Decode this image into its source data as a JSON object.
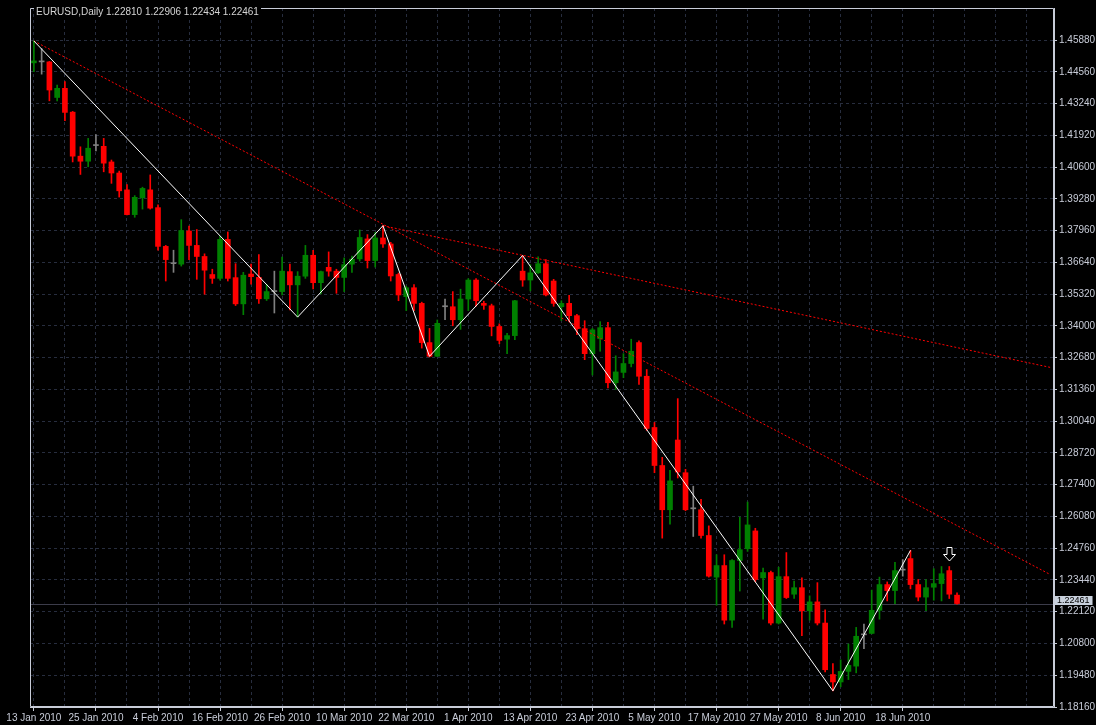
{
  "chart_data": {
    "type": "candlestick",
    "title": "EURUSD,Daily 1.22810 1.22906 1.22434 1.22461",
    "categories": [
      "13 Jan 2010",
      null,
      null,
      null,
      null,
      null,
      null,
      null,
      "25 Jan 2010",
      null,
      null,
      null,
      null,
      null,
      null,
      null,
      "4 Feb 2010",
      null,
      null,
      null,
      null,
      null,
      null,
      null,
      "16 Feb 2010",
      null,
      null,
      null,
      null,
      null,
      null,
      null,
      "26 Feb 2010",
      null,
      null,
      null,
      null,
      null,
      null,
      null,
      "10 Mar 2010",
      null,
      null,
      null,
      null,
      null,
      null,
      null,
      "22 Mar 2010",
      null,
      null,
      null,
      null,
      null,
      null,
      null,
      "1 Apr 2010",
      null,
      null,
      null,
      null,
      null,
      null,
      null,
      "13 Apr 2010",
      null,
      null,
      null,
      null,
      null,
      null,
      null,
      "23 Apr 2010",
      null,
      null,
      null,
      null,
      null,
      null,
      null,
      "5 May 2010",
      null,
      null,
      null,
      null,
      null,
      null,
      null,
      "17 May 2010",
      null,
      null,
      null,
      null,
      null,
      null,
      null,
      "27 May 2010",
      null,
      null,
      null,
      null,
      null,
      null,
      null,
      "8 Jun 2010",
      null,
      null,
      null,
      null,
      null,
      null,
      null,
      "18 Jun 2010",
      null,
      null,
      null,
      null,
      null,
      null,
      null,
      null,
      null,
      null,
      null,
      null,
      null,
      null,
      null,
      null,
      null,
      null,
      null
    ],
    "ohlc": [
      [
        1.4494,
        1.4585,
        1.4457,
        1.4502
      ],
      [
        1.4498,
        1.4553,
        1.4447,
        1.4498
      ],
      [
        1.4498,
        1.45,
        1.4336,
        1.4381
      ],
      [
        1.435,
        1.4402,
        1.4336,
        1.4388
      ],
      [
        1.4388,
        1.4416,
        1.4254,
        1.4288
      ],
      [
        1.4289,
        1.4292,
        1.4082,
        1.4106
      ],
      [
        1.4106,
        1.4145,
        1.403,
        1.4085
      ],
      [
        1.4085,
        1.418,
        1.4062,
        1.4139
      ],
      [
        1.415,
        1.4196,
        1.4128,
        1.415
      ],
      [
        1.4147,
        1.418,
        1.4041,
        1.4077
      ],
      [
        1.4082,
        1.409,
        1.3993,
        1.4036
      ],
      [
        1.4036,
        1.4044,
        1.3936,
        1.3962
      ],
      [
        1.3966,
        1.3988,
        1.3862,
        1.3863
      ],
      [
        1.3863,
        1.3942,
        1.3852,
        1.3935
      ],
      [
        1.3933,
        1.3977,
        1.3886,
        1.3972
      ],
      [
        1.3966,
        1.4028,
        1.3886,
        1.389
      ],
      [
        1.3892,
        1.3904,
        1.3715,
        1.3731
      ],
      [
        1.3731,
        1.3735,
        1.3587,
        1.3676
      ],
      [
        1.3659,
        1.3715,
        1.3623,
        1.3659
      ],
      [
        1.3657,
        1.3842,
        1.3649,
        1.3797
      ],
      [
        1.3795,
        1.3815,
        1.3676,
        1.3735
      ],
      [
        1.3735,
        1.3801,
        1.3594,
        1.3689
      ],
      [
        1.3689,
        1.37,
        1.3532,
        1.3632
      ],
      [
        1.3614,
        1.3636,
        1.3577,
        1.3598
      ],
      [
        1.3598,
        1.3773,
        1.3591,
        1.376
      ],
      [
        1.376,
        1.3791,
        1.3587,
        1.3598
      ],
      [
        1.3601,
        1.3659,
        1.3485,
        1.3492
      ],
      [
        1.3492,
        1.3623,
        1.3447,
        1.3611
      ],
      [
        1.3616,
        1.3657,
        1.3574,
        1.3605
      ],
      [
        1.3602,
        1.3697,
        1.3494,
        1.3513
      ],
      [
        1.3513,
        1.3573,
        1.3506,
        1.3543
      ],
      [
        1.3543,
        1.3628,
        1.3454,
        1.3543
      ],
      [
        1.3543,
        1.3686,
        1.3529,
        1.3628
      ],
      [
        1.3626,
        1.3657,
        1.3467,
        1.3571
      ],
      [
        1.3571,
        1.3626,
        1.3437,
        1.3607
      ],
      [
        1.3607,
        1.3735,
        1.3598,
        1.3694
      ],
      [
        1.3694,
        1.3715,
        1.3554,
        1.358
      ],
      [
        1.358,
        1.3628,
        1.3533,
        1.3626
      ],
      [
        1.3644,
        1.3708,
        1.3607,
        1.3628
      ],
      [
        1.3628,
        1.3636,
        1.3536,
        1.3602
      ],
      [
        1.3602,
        1.3683,
        1.3543,
        1.3655
      ],
      [
        1.3657,
        1.3691,
        1.3623,
        1.3678
      ],
      [
        1.3679,
        1.3799,
        1.367,
        1.3768
      ],
      [
        1.3762,
        1.378,
        1.3641,
        1.3672
      ],
      [
        1.3672,
        1.3789,
        1.3645,
        1.3766
      ],
      [
        1.3766,
        1.3817,
        1.3727,
        1.3741
      ],
      [
        1.3741,
        1.3748,
        1.3587,
        1.3608
      ],
      [
        1.3614,
        1.362,
        1.3505,
        1.3529
      ],
      [
        1.3522,
        1.3566,
        1.3464,
        1.3559
      ],
      [
        1.3559,
        1.3572,
        1.3464,
        1.3494
      ],
      [
        1.3494,
        1.3499,
        1.3308,
        1.3331
      ],
      [
        1.3331,
        1.339,
        1.3271,
        1.3274
      ],
      [
        1.3274,
        1.3425,
        1.3273,
        1.3411
      ],
      [
        1.348,
        1.3512,
        1.3426,
        1.348
      ],
      [
        1.348,
        1.3543,
        1.3401,
        1.3426
      ],
      [
        1.3426,
        1.3553,
        1.3386,
        1.3512
      ],
      [
        1.3512,
        1.3597,
        1.3464,
        1.3591
      ],
      [
        1.3591,
        1.3597,
        1.3482,
        1.3505
      ],
      [
        1.3494,
        1.3503,
        1.3469,
        1.3486
      ],
      [
        1.3484,
        1.3491,
        1.3359,
        1.3398
      ],
      [
        1.3398,
        1.3409,
        1.3326,
        1.334
      ],
      [
        1.3345,
        1.337,
        1.3285,
        1.336
      ],
      [
        1.336,
        1.3507,
        1.3343,
        1.3505
      ],
      [
        1.3628,
        1.3693,
        1.3565,
        1.3591
      ],
      [
        1.3591,
        1.3655,
        1.3546,
        1.3621
      ],
      [
        1.3621,
        1.3688,
        1.3619,
        1.3659
      ],
      [
        1.3659,
        1.3676,
        1.3525,
        1.3529
      ],
      [
        1.3587,
        1.3594,
        1.3482,
        1.3494
      ],
      [
        1.348,
        1.3505,
        1.3423,
        1.3494
      ],
      [
        1.3494,
        1.3527,
        1.3419,
        1.3443
      ],
      [
        1.3443,
        1.3448,
        1.3364,
        1.3389
      ],
      [
        1.3389,
        1.3422,
        1.326,
        1.3285
      ],
      [
        1.3285,
        1.339,
        1.3196,
        1.3384
      ],
      [
        1.3347,
        1.3418,
        1.3295,
        1.3393
      ],
      [
        1.3393,
        1.3415,
        1.3143,
        1.3164
      ],
      [
        1.3164,
        1.3276,
        1.3136,
        1.3209
      ],
      [
        1.3207,
        1.3285,
        1.3185,
        1.3244
      ],
      [
        1.3244,
        1.3345,
        1.323,
        1.3295
      ],
      [
        1.3331,
        1.3338,
        1.3157,
        1.3191
      ],
      [
        1.3191,
        1.3219,
        1.2966,
        1.2974
      ],
      [
        1.2978,
        1.2999,
        1.279,
        1.282
      ],
      [
        1.282,
        1.2854,
        1.2518,
        1.2636
      ],
      [
        1.2636,
        1.28,
        1.2576,
        1.2756
      ],
      [
        1.2926,
        1.3098,
        1.2768,
        1.2793
      ],
      [
        1.279,
        1.2804,
        1.2632,
        1.2636
      ],
      [
        1.264,
        1.2734,
        1.2525,
        1.264
      ],
      [
        1.2636,
        1.2679,
        1.2518,
        1.2529
      ],
      [
        1.2529,
        1.2569,
        1.2356,
        1.236
      ],
      [
        1.2356,
        1.2449,
        1.2239,
        1.2404
      ],
      [
        1.2404,
        1.2449,
        1.2161,
        1.2177
      ],
      [
        1.2177,
        1.2429,
        1.2147,
        1.2425
      ],
      [
        1.2425,
        1.2605,
        1.2298,
        1.247
      ],
      [
        1.2474,
        1.2668,
        1.2463,
        1.2573
      ],
      [
        1.2548,
        1.2559,
        1.2337,
        1.2346
      ],
      [
        1.2353,
        1.2394,
        1.2181,
        1.2375
      ],
      [
        1.2375,
        1.2381,
        1.2157,
        1.2165
      ],
      [
        1.2165,
        1.2397,
        1.2161,
        1.2358
      ],
      [
        1.2358,
        1.2458,
        1.2267,
        1.2271
      ],
      [
        1.2285,
        1.234,
        1.2267,
        1.2312
      ],
      [
        1.2312,
        1.2353,
        1.2113,
        1.2216
      ],
      [
        1.2216,
        1.2278,
        1.2177,
        1.2253
      ],
      [
        1.2253,
        1.2333,
        1.2157,
        1.2165
      ],
      [
        1.2165,
        1.222,
        1.1962,
        1.1971
      ],
      [
        1.1951,
        1.1996,
        1.1883,
        1.192
      ],
      [
        1.192,
        1.2012,
        1.19,
        1.1964
      ],
      [
        1.1964,
        1.2078,
        1.193,
        1.1989
      ],
      [
        1.1986,
        1.2147,
        1.1958,
        1.211
      ],
      [
        1.2116,
        1.2161,
        1.2058,
        1.2116
      ],
      [
        1.2122,
        1.2302,
        1.212,
        1.2218
      ],
      [
        1.2218,
        1.2356,
        1.2181,
        1.2325
      ],
      [
        1.2325,
        1.2336,
        1.2257,
        1.23
      ],
      [
        1.23,
        1.2417,
        1.2246,
        1.2383
      ],
      [
        1.2385,
        1.2429,
        1.236,
        1.2385
      ],
      [
        1.2433,
        1.2467,
        1.2307,
        1.2325
      ],
      [
        1.2325,
        1.2346,
        1.2257,
        1.2273
      ],
      [
        1.2273,
        1.2346,
        1.2216,
        1.2312
      ],
      [
        1.2314,
        1.2391,
        1.226,
        1.2329
      ],
      [
        1.2329,
        1.24,
        1.2257,
        1.237
      ],
      [
        1.2383,
        1.24,
        1.2267,
        1.2285
      ],
      [
        1.2281,
        1.22906,
        1.22434,
        1.22461
      ],
      null,
      null,
      null,
      null,
      null,
      null,
      null,
      null,
      null,
      null,
      null,
      null
    ],
    "colors": [
      "#008000",
      "#808080",
      "#ff0000",
      "#008000",
      "#ff0000",
      "#ff0000",
      "#ff0000",
      "#008000",
      "#808080",
      "#ff0000",
      "#ff0000",
      "#ff0000",
      "#ff0000",
      "#008000",
      "#008000",
      "#ff0000",
      "#ff0000",
      "#ff0000",
      "#808080",
      "#008000",
      "#ff0000",
      "#ff0000",
      "#ff0000",
      "#ff0000",
      "#008000",
      "#ff0000",
      "#ff0000",
      "#008000",
      "#ff0000",
      "#ff0000",
      "#008000",
      "#808080",
      "#008000",
      "#ff0000",
      "#008000",
      "#008000",
      "#ff0000",
      "#008000",
      "#ff0000",
      "#ff0000",
      "#008000",
      "#008000",
      "#008000",
      "#ff0000",
      "#008000",
      "#ff0000",
      "#ff0000",
      "#ff0000",
      "#008000",
      "#ff0000",
      "#ff0000",
      "#ff0000",
      "#008000",
      "#808080",
      "#ff0000",
      "#008000",
      "#008000",
      "#ff0000",
      "#ff0000",
      "#ff0000",
      "#ff0000",
      "#008000",
      "#008000",
      "#ff0000",
      "#008000",
      "#008000",
      "#ff0000",
      "#ff0000",
      "#008000",
      "#ff0000",
      "#ff0000",
      "#ff0000",
      "#008000",
      "#008000",
      "#ff0000",
      "#008000",
      "#008000",
      "#008000",
      "#ff0000",
      "#ff0000",
      "#ff0000",
      "#ff0000",
      "#008000",
      "#ff0000",
      "#ff0000",
      "#808080",
      "#ff0000",
      "#ff0000",
      "#008000",
      "#ff0000",
      "#008000",
      "#008000",
      "#008000",
      "#ff0000",
      "#008000",
      "#ff0000",
      "#008000",
      "#ff0000",
      "#008000",
      "#ff0000",
      "#008000",
      "#ff0000",
      "#ff0000",
      "#ff0000",
      "#008000",
      "#008000",
      "#008000",
      "#808080",
      "#008000",
      "#008000",
      "#ff0000",
      "#008000",
      "#808080",
      "#ff0000",
      "#ff0000",
      "#008000",
      "#008000",
      "#008000",
      "#ff0000",
      "#ff0000",
      null,
      null,
      null,
      null,
      null,
      null,
      null,
      null,
      null,
      null,
      null,
      null
    ],
    "series": [
      {
        "type": "line",
        "color": "#ffffff",
        "values": [
          1.4585,
          null,
          null,
          null,
          null,
          null,
          null,
          null,
          null,
          null,
          null,
          null,
          null,
          null,
          null,
          null,
          null,
          null,
          null,
          null,
          null,
          null,
          null,
          null,
          null,
          null,
          null,
          null,
          null,
          null,
          null,
          null,
          null,
          null,
          1.3437,
          null,
          null,
          null,
          null,
          null,
          null,
          null,
          null,
          null,
          null,
          1.3817,
          null,
          null,
          null,
          null,
          null,
          1.3274,
          null,
          null,
          null,
          null,
          null,
          null,
          null,
          null,
          null,
          null,
          null,
          1.3693,
          null,
          null,
          null,
          null,
          null,
          null,
          null,
          null,
          null,
          null,
          null,
          null,
          null,
          null,
          null,
          null,
          null,
          null,
          null,
          null,
          null,
          null,
          null,
          null,
          null,
          null,
          null,
          null,
          null,
          null,
          null,
          null,
          null,
          null,
          null,
          null,
          null,
          null,
          null,
          1.1883,
          null,
          null,
          null,
          null,
          null,
          null,
          null,
          null,
          null,
          1.2467,
          null,
          null,
          null,
          null,
          null,
          null,
          null,
          null,
          null,
          null,
          null,
          null,
          null,
          null,
          null,
          null,
          null,
          null
        ]
      },
      {
        "type": "line",
        "color": "#ff0000",
        "line_style": "dotted",
        "values": [
          1.4585,
          null,
          null,
          null,
          null,
          null,
          null,
          null,
          null,
          null,
          null,
          null,
          null,
          null,
          null,
          null,
          null,
          null,
          null,
          null,
          null,
          null,
          null,
          null,
          null,
          null,
          null,
          null,
          null,
          null,
          null,
          null,
          null,
          null,
          null,
          null,
          null,
          null,
          null,
          null,
          null,
          null,
          null,
          null,
          null,
          null,
          null,
          null,
          null,
          null,
          null,
          null,
          null,
          null,
          null,
          null,
          null,
          null,
          null,
          null,
          null,
          null,
          null,
          null,
          null,
          null,
          null,
          null,
          null,
          null,
          null,
          null,
          null,
          null,
          null,
          null,
          null,
          null,
          null,
          null,
          null,
          null,
          null,
          null,
          null,
          null,
          null,
          null,
          null,
          null,
          null,
          null,
          null,
          null,
          null,
          null,
          null,
          null,
          null,
          null,
          null,
          null,
          null,
          null,
          null,
          null,
          null,
          null,
          null,
          null,
          null,
          null,
          null,
          null,
          null,
          null,
          null,
          null,
          null,
          null,
          null,
          null,
          null,
          null,
          null,
          null,
          null,
          null,
          null,
          null,
          null,
          1.2367
        ]
      },
      {
        "type": "line",
        "color": "#ff0000",
        "line_style": "dotted",
        "values": [
          null,
          null,
          null,
          null,
          null,
          null,
          null,
          null,
          null,
          null,
          null,
          null,
          null,
          null,
          null,
          null,
          null,
          null,
          null,
          null,
          null,
          null,
          null,
          null,
          null,
          null,
          null,
          null,
          null,
          null,
          null,
          null,
          null,
          null,
          null,
          null,
          null,
          null,
          null,
          null,
          null,
          null,
          null,
          null,
          null,
          1.3817,
          null,
          null,
          null,
          null,
          null,
          null,
          null,
          null,
          null,
          null,
          null,
          null,
          null,
          null,
          null,
          null,
          null,
          null,
          null,
          null,
          null,
          null,
          null,
          null,
          null,
          null,
          null,
          null,
          null,
          null,
          null,
          null,
          null,
          null,
          null,
          null,
          null,
          null,
          null,
          null,
          null,
          null,
          null,
          null,
          null,
          null,
          null,
          null,
          null,
          null,
          null,
          null,
          null,
          null,
          null,
          null,
          null,
          null,
          null,
          null,
          null,
          null,
          null,
          null,
          null,
          null,
          null,
          null,
          null,
          null,
          null,
          null,
          null,
          null,
          null,
          null,
          null,
          null,
          null,
          null,
          null,
          null,
          null,
          null,
          null,
          1.3228
        ]
      }
    ],
    "ylim": [
      1.1816,
      1.4722
    ],
    "yticks": [
      {
        "value": 1.1816,
        "label": "1.18160"
      },
      {
        "value": 1.1948,
        "label": "1.19480"
      },
      {
        "value": 1.208,
        "label": "1.20800"
      },
      {
        "value": 1.2212,
        "label": "1.22120"
      },
      {
        "value": 1.2344,
        "label": "1.23440"
      },
      {
        "value": 1.2476,
        "label": "1.24760"
      },
      {
        "value": 1.2608,
        "label": "1.26080"
      },
      {
        "value": 1.274,
        "label": "1.27400"
      },
      {
        "value": 1.2872,
        "label": "1.28720"
      },
      {
        "value": 1.3004,
        "label": "1.30040"
      },
      {
        "value": 1.3136,
        "label": "1.31360"
      },
      {
        "value": 1.3268,
        "label": "1.32680"
      },
      {
        "value": 1.34,
        "label": "1.34000"
      },
      {
        "value": 1.3532,
        "label": "1.35320"
      },
      {
        "value": 1.3664,
        "label": "1.36640"
      },
      {
        "value": 1.3796,
        "label": "1.37960"
      },
      {
        "value": 1.3928,
        "label": "1.39280"
      },
      {
        "value": 1.406,
        "label": "1.40600"
      },
      {
        "value": 1.4192,
        "label": "1.41920"
      },
      {
        "value": 1.4324,
        "label": "1.43240"
      },
      {
        "value": 1.4456,
        "label": "1.44560"
      },
      {
        "value": 1.4588,
        "label": "1.45880"
      }
    ],
    "ref_lines": [
      {
        "axis": "y",
        "value": 1.22461,
        "label": "1.22461",
        "color": "#3c3c4a"
      }
    ],
    "grid": true
  }
}
